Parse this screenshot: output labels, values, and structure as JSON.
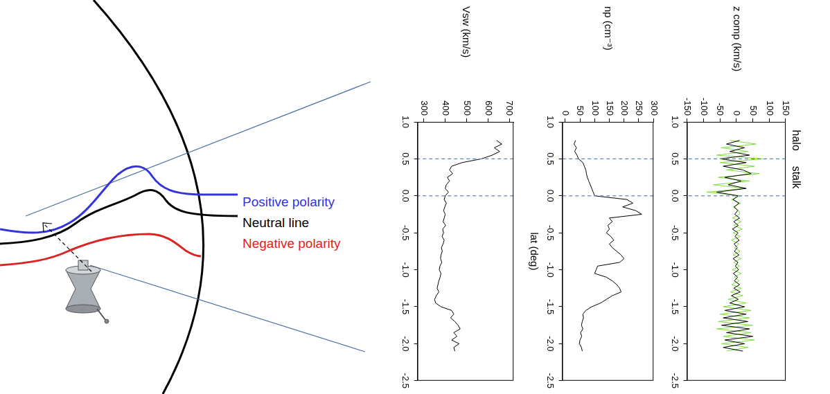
{
  "diagram": {
    "labels": [
      {
        "text": "Positive polarity",
        "color": "#3333dd"
      },
      {
        "text": "Neutral line",
        "color": "#000000"
      },
      {
        "text": "Negative polarity",
        "color": "#dd2222"
      }
    ]
  },
  "regions": {
    "labels": [
      "halo",
      "stalk"
    ],
    "boundaries": [
      0.5,
      0.0
    ]
  },
  "chart_data": [
    {
      "type": "line",
      "y_label": "Vsw (km/s)",
      "xlim": [
        1.0,
        -2.5
      ],
      "xticks": [
        {
          "value": 1,
          "label": "1.0"
        },
        0.5,
        {
          "value": 0,
          "label": "0.0"
        },
        -0.5,
        {
          "value": -1,
          "label": "-1.0"
        },
        -1.5,
        {
          "value": -2,
          "label": "-2.0"
        },
        -2.5
      ],
      "ylim": [
        270,
        720
      ],
      "yticks": [
        300,
        400,
        500,
        600,
        700
      ],
      "x": [
        0.75,
        0.7,
        0.65,
        0.6,
        0.55,
        0.5,
        0.45,
        0.4,
        0.35,
        0.3,
        0.25,
        0.2,
        0.15,
        0.1,
        0.05,
        0,
        -0.05,
        -0.1,
        -0.15,
        -0.2,
        -0.25,
        -0.3,
        -0.35,
        -0.4,
        -0.45,
        -0.5,
        -0.55,
        -0.6,
        -0.65,
        -0.7,
        -0.75,
        -0.8,
        -0.85,
        -0.9,
        -0.95,
        -1,
        -1.05,
        -1.1,
        -1.15,
        -1.2,
        -1.25,
        -1.3,
        -1.35,
        -1.4,
        -1.45,
        -1.5,
        -1.55,
        -1.6,
        -1.65,
        -1.7,
        -1.75,
        -1.8,
        -1.85,
        -1.9,
        -1.95,
        -2,
        -2.05,
        -2.1
      ],
      "series": [
        {
          "color": "#000000",
          "values": [
            640,
            665,
            630,
            655,
            620,
            570,
            480,
            430,
            420,
            435,
            410,
            420,
            405,
            400,
            415,
            400,
            395,
            405,
            398,
            392,
            400,
            395,
            390,
            402,
            388,
            392,
            385,
            395,
            390,
            382,
            386,
            380,
            378,
            384,
            375,
            372,
            380,
            376,
            370,
            366,
            362,
            370,
            358,
            350,
            355,
            380,
            430,
            440,
            425,
            445,
            460,
            470,
            440,
            455,
            430,
            465,
            440,
            445
          ]
        }
      ]
    },
    {
      "type": "line",
      "y_label": "np (cm⁻³)",
      "x_label": "lat (deg)",
      "xlim": [
        1.0,
        -2.5
      ],
      "xticks": [
        {
          "value": 1,
          "label": "1.0"
        },
        0.5,
        {
          "value": 0,
          "label": "0.0"
        },
        -0.5,
        {
          "value": -1,
          "label": "-1.0"
        },
        -1.5,
        {
          "value": -2,
          "label": "-2.0"
        },
        -2.5
      ],
      "ylim": [
        -10,
        300
      ],
      "yticks": [
        0,
        50,
        100,
        150,
        200,
        250,
        300
      ],
      "x": [
        0.75,
        0.7,
        0.65,
        0.6,
        0.55,
        0.5,
        0.45,
        0.4,
        0.35,
        0.3,
        0.25,
        0.2,
        0.15,
        0.1,
        0.05,
        0,
        -0.05,
        -0.1,
        -0.15,
        -0.2,
        -0.25,
        -0.3,
        -0.35,
        -0.4,
        -0.45,
        -0.5,
        -0.55,
        -0.6,
        -0.65,
        -0.7,
        -0.75,
        -0.8,
        -0.85,
        -0.9,
        -0.95,
        -1,
        -1.05,
        -1.1,
        -1.15,
        -1.2,
        -1.25,
        -1.3,
        -1.35,
        -1.4,
        -1.45,
        -1.5,
        -1.55,
        -1.6,
        -1.65,
        -1.7,
        -1.75,
        -1.8,
        -1.85,
        -1.9,
        -1.95,
        -2,
        -2.05,
        -2.1
      ],
      "series": [
        {
          "color": "#000000",
          "values": [
            35,
            30,
            38,
            32,
            40,
            45,
            60,
            65,
            70,
            72,
            75,
            80,
            85,
            90,
            95,
            100,
            210,
            230,
            195,
            240,
            260,
            150,
            160,
            145,
            150,
            140,
            155,
            165,
            150,
            160,
            175,
            190,
            200,
            185,
            110,
            105,
            100,
            140,
            160,
            175,
            185,
            190,
            160,
            140,
            120,
            90,
            70,
            60,
            62,
            58,
            55,
            60,
            52,
            56,
            50,
            48,
            55,
            58
          ]
        }
      ]
    },
    {
      "type": "line",
      "y_label": "z comp (km/s)",
      "xlim": [
        1.0,
        -2.5
      ],
      "xticks": [
        {
          "value": 1,
          "label": "1.0"
        },
        0.5,
        {
          "value": 0,
          "label": "0.0"
        },
        -0.5,
        {
          "value": -1,
          "label": "-1.0"
        },
        -1.5,
        {
          "value": -2,
          "label": "-2.0"
        },
        -2.5
      ],
      "ylim": [
        -150,
        150
      ],
      "yticks": [
        -150,
        -100,
        -50,
        0,
        50,
        100,
        150
      ],
      "x": [
        0.75,
        0.7,
        0.65,
        0.6,
        0.55,
        0.5,
        0.45,
        0.4,
        0.35,
        0.3,
        0.25,
        0.2,
        0.15,
        0.1,
        0.05,
        0,
        -0.05,
        -0.1,
        -0.15,
        -0.2,
        -0.25,
        -0.3,
        -0.35,
        -0.4,
        -0.45,
        -0.5,
        -0.55,
        -0.6,
        -0.65,
        -0.7,
        -0.75,
        -0.8,
        -0.85,
        -0.9,
        -0.95,
        -1,
        -1.05,
        -1.1,
        -1.15,
        -1.2,
        -1.25,
        -1.3,
        -1.35,
        -1.4,
        -1.45,
        -1.5,
        -1.55,
        -1.6,
        -1.65,
        -1.7,
        -1.75,
        -1.8,
        -1.85,
        -1.9,
        -1.95,
        -2,
        -2.05,
        -2.1
      ],
      "series": [
        {
          "color": "#000000",
          "values": [
            10,
            -30,
            25,
            -20,
            40,
            -50,
            30,
            -40,
            20,
            45,
            -35,
            15,
            -25,
            30,
            -60,
            5,
            -10,
            8,
            -6,
            4,
            -5,
            10,
            -8,
            6,
            -12,
            5,
            -4,
            9,
            -7,
            3,
            -6,
            8,
            -10,
            5,
            -3,
            7,
            -9,
            4,
            -6,
            10,
            -8,
            12,
            -15,
            6,
            -20,
            25,
            -35,
            30,
            -40,
            35,
            -45,
            40,
            -30,
            50,
            -35,
            25,
            -40,
            20
          ]
        },
        {
          "color": "#7ddc3a",
          "values": [
            -20,
            60,
            -45,
            35,
            -60,
            80,
            -50,
            55,
            -30,
            70,
            -55,
            40,
            -70,
            25,
            -90,
            15,
            -15,
            12,
            -10,
            8,
            10,
            -12,
            15,
            -8,
            18,
            -10,
            12,
            -15,
            8,
            -6,
            12,
            -10,
            14,
            -8,
            10,
            -12,
            15,
            -6,
            9,
            -14,
            15,
            -18,
            20,
            -25,
            30,
            -40,
            45,
            -50,
            40,
            -55,
            50,
            -60,
            45,
            -40,
            55,
            -45,
            35,
            -30
          ]
        }
      ]
    }
  ]
}
